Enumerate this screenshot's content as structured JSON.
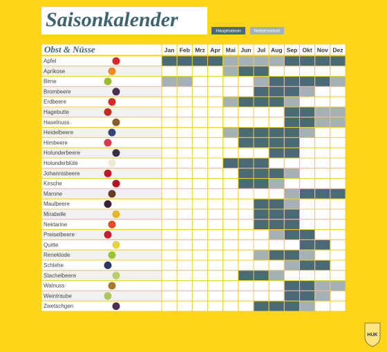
{
  "title": "Saisonkalender",
  "legend": [
    {
      "label": "Hauptsaison",
      "color": "#4a6b74"
    },
    {
      "label": "Nebensaison",
      "color": "#a4b2b6"
    }
  ],
  "table": {
    "header": "Obst & Nüsse",
    "months": [
      "Jan",
      "Feb",
      "Mrz",
      "Apr",
      "Mai",
      "Jun",
      "Jul",
      "Aug",
      "Sep",
      "Okt",
      "Nov",
      "Dez"
    ],
    "rows": [
      {
        "name": "Apfel",
        "main": [
          0,
          1,
          2,
          3,
          8,
          9,
          10,
          11
        ],
        "secondary": [
          4,
          5,
          6,
          7
        ]
      },
      {
        "name": "Aprikose",
        "main": [
          5,
          6
        ],
        "secondary": [
          4
        ]
      },
      {
        "name": "Birne",
        "main": [
          7,
          8,
          9,
          10
        ],
        "secondary": [
          0,
          1,
          6,
          11
        ]
      },
      {
        "name": "Brombeere",
        "main": [
          6,
          7,
          8
        ],
        "secondary": [
          9
        ]
      },
      {
        "name": "Erdbeere",
        "main": [
          5,
          6,
          7
        ],
        "secondary": [
          4,
          8
        ]
      },
      {
        "name": "Hagebutte",
        "main": [
          8,
          9
        ],
        "secondary": [
          10,
          11
        ]
      },
      {
        "name": "Haselnuss",
        "main": [
          8,
          9
        ],
        "secondary": [
          10,
          11
        ]
      },
      {
        "name": "Heidelbeere",
        "main": [
          5,
          6,
          7,
          8
        ],
        "secondary": [
          4,
          9
        ]
      },
      {
        "name": "Himbeere",
        "main": [
          5,
          6,
          7,
          8
        ],
        "secondary": []
      },
      {
        "name": "Holunderbeere",
        "main": [
          7,
          8
        ],
        "secondary": []
      },
      {
        "name": "Holunderblüte",
        "main": [
          4,
          5,
          6
        ],
        "secondary": []
      },
      {
        "name": "Johannisbeere",
        "main": [
          5,
          6,
          7
        ],
        "secondary": [
          8
        ]
      },
      {
        "name": "Kirsche",
        "main": [
          5,
          6
        ],
        "secondary": [
          7
        ]
      },
      {
        "name": "Marone",
        "main": [
          9,
          10,
          11
        ],
        "secondary": [
          8
        ]
      },
      {
        "name": "Maulbeere",
        "main": [
          6,
          7
        ],
        "secondary": [
          8
        ]
      },
      {
        "name": "Mirabelle",
        "main": [
          6,
          7,
          8
        ],
        "secondary": []
      },
      {
        "name": "Nektarine",
        "main": [
          6,
          7,
          8
        ],
        "secondary": []
      },
      {
        "name": "Preiselbeere",
        "main": [
          8,
          9
        ],
        "secondary": [
          7
        ]
      },
      {
        "name": "Quitte",
        "main": [
          9,
          10
        ],
        "secondary": []
      },
      {
        "name": "Reneklode",
        "main": [
          7,
          8
        ],
        "secondary": [
          6,
          9
        ]
      },
      {
        "name": "Schlehe",
        "main": [
          9,
          10
        ],
        "secondary": [
          8
        ]
      },
      {
        "name": "Stachelbeere",
        "main": [
          5,
          6
        ],
        "secondary": [
          7
        ]
      },
      {
        "name": "Walnuss",
        "main": [
          8,
          9
        ],
        "secondary": [
          10,
          11
        ]
      },
      {
        "name": "Weintraube",
        "main": [
          8,
          9
        ],
        "secondary": [
          10
        ]
      },
      {
        "name": "Zwetschgen",
        "main": [
          6,
          7,
          8
        ],
        "secondary": [
          9
        ]
      }
    ]
  },
  "logo": "HUK"
}
